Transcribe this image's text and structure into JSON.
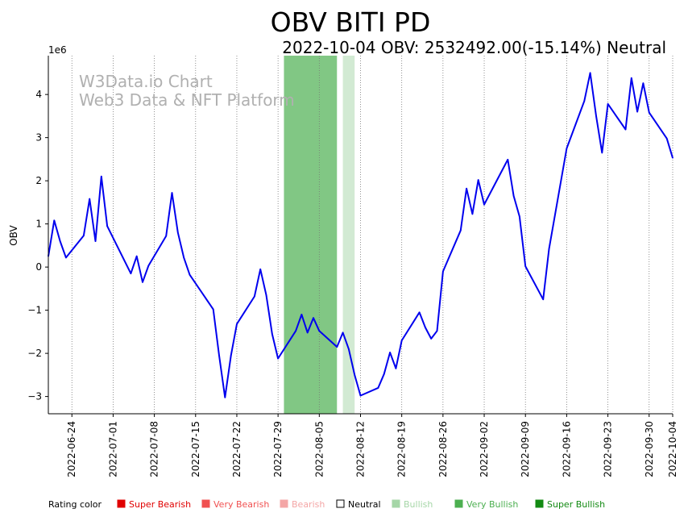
{
  "chart_data": {
    "type": "line",
    "title": "OBV BITI PD",
    "subtitle": "2022-10-04 OBV: 2532492.00(-15.14%) Neutral",
    "ylabel": "OBV",
    "y_scale_label": "1e6",
    "ylim": [
      -3.4,
      4.9
    ],
    "y_ticks": [
      -3,
      -2,
      -1,
      0,
      1,
      2,
      3,
      4
    ],
    "y_tick_labels": [
      "−3",
      "−2",
      "−1",
      "0",
      "1",
      "2",
      "3",
      "4"
    ],
    "x_range": [
      "2022-06-20",
      "2022-10-04"
    ],
    "x_ticks": [
      "2022-06-24",
      "2022-07-01",
      "2022-07-08",
      "2022-07-15",
      "2022-07-22",
      "2022-07-29",
      "2022-08-05",
      "2022-08-12",
      "2022-08-19",
      "2022-08-26",
      "2022-09-02",
      "2022-09-09",
      "2022-09-16",
      "2022-09-23",
      "2022-09-30",
      "2022-10-04"
    ],
    "watermark": [
      "W3Data.io Chart",
      "Web3 Data & NFT Platform"
    ],
    "shaded_regions": [
      {
        "start": "2022-07-30",
        "end": "2022-08-07",
        "rating": "Very Bullish",
        "color": "#4caf50",
        "opacity": 0.7
      },
      {
        "start": "2022-08-09",
        "end": "2022-08-10",
        "rating": "Bullish",
        "color": "#a5d6a7",
        "opacity": 0.5
      }
    ],
    "series": [
      {
        "name": "OBV",
        "color": "#0000ee",
        "x": [
          "2022-06-20",
          "2022-06-21",
          "2022-06-22",
          "2022-06-23",
          "2022-06-26",
          "2022-06-27",
          "2022-06-28",
          "2022-06-29",
          "2022-06-30",
          "2022-07-04",
          "2022-07-05",
          "2022-07-06",
          "2022-07-07",
          "2022-07-10",
          "2022-07-11",
          "2022-07-12",
          "2022-07-13",
          "2022-07-14",
          "2022-07-18",
          "2022-07-19",
          "2022-07-20",
          "2022-07-21",
          "2022-07-22",
          "2022-07-25",
          "2022-07-26",
          "2022-07-27",
          "2022-07-28",
          "2022-07-29",
          "2022-08-01",
          "2022-08-02",
          "2022-08-03",
          "2022-08-04",
          "2022-08-05",
          "2022-08-08",
          "2022-08-09",
          "2022-08-10",
          "2022-08-11",
          "2022-08-12",
          "2022-08-15",
          "2022-08-16",
          "2022-08-17",
          "2022-08-18",
          "2022-08-19",
          "2022-08-22",
          "2022-08-23",
          "2022-08-24",
          "2022-08-25",
          "2022-08-26",
          "2022-08-29",
          "2022-08-30",
          "2022-08-31",
          "2022-09-01",
          "2022-09-02",
          "2022-09-06",
          "2022-09-07",
          "2022-09-08",
          "2022-09-09",
          "2022-09-12",
          "2022-09-13",
          "2022-09-16",
          "2022-09-19",
          "2022-09-20",
          "2022-09-21",
          "2022-09-22",
          "2022-09-23",
          "2022-09-26",
          "2022-09-27",
          "2022-09-28",
          "2022-09-29",
          "2022-09-30",
          "2022-10-03",
          "2022-10-04"
        ],
        "values": [
          0.25,
          1.08,
          0.6,
          0.22,
          0.73,
          1.58,
          0.6,
          2.1,
          0.95,
          -0.15,
          0.25,
          -0.35,
          0.03,
          0.72,
          1.72,
          0.8,
          0.22,
          -0.18,
          -0.98,
          -2.05,
          -3.02,
          -2.05,
          -1.32,
          -0.68,
          -0.05,
          -0.65,
          -1.55,
          -2.12,
          -1.48,
          -1.1,
          -1.52,
          -1.18,
          -1.48,
          -1.85,
          -1.52,
          -1.9,
          -2.5,
          -2.98,
          -2.8,
          -2.48,
          -1.98,
          -2.35,
          -1.7,
          -1.05,
          -1.4,
          -1.66,
          -1.48,
          -0.1,
          0.85,
          1.82,
          1.23,
          2.02,
          1.45,
          2.49,
          1.65,
          1.17,
          0.02,
          -0.75,
          0.42,
          2.75,
          3.85,
          4.5,
          3.5,
          2.65,
          3.78,
          3.19,
          4.38,
          3.6,
          4.26,
          3.58,
          2.98,
          2.53
        ]
      }
    ],
    "legend": {
      "label": "Rating color",
      "items": [
        {
          "label": "Super Bearish",
          "color": "#e00000"
        },
        {
          "label": "Very Bearish",
          "color": "#f05050"
        },
        {
          "label": "Bearish",
          "color": "#f4a6a6"
        },
        {
          "label": "Neutral",
          "color": "#000000"
        },
        {
          "label": "Bullish",
          "color": "#a5d6a7"
        },
        {
          "label": "Very Bullish",
          "color": "#4caf50"
        },
        {
          "label": "Super Bullish",
          "color": "#138a13"
        }
      ]
    }
  }
}
